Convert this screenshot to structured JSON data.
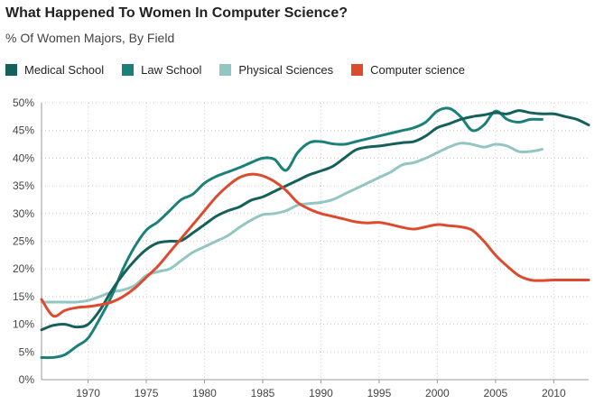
{
  "chart_data": {
    "type": "line",
    "title": "What Happened To Women In Computer Science?",
    "subtitle": "% Of Women Majors, By Field",
    "xlabel": "",
    "ylabel": "",
    "xlim": [
      1966,
      2013
    ],
    "ylim": [
      0,
      50
    ],
    "xticks": [
      1970,
      1975,
      1980,
      1985,
      1990,
      1995,
      2000,
      2005,
      2010
    ],
    "yticks": [
      0,
      5,
      10,
      15,
      20,
      25,
      30,
      35,
      40,
      45,
      50
    ],
    "ytick_suffix": "%",
    "grid": true,
    "legend_position": "top-left",
    "series": [
      {
        "name": "Medical School",
        "color": "#15605a",
        "points": [
          [
            1966,
            9.0
          ],
          [
            1967,
            9.8
          ],
          [
            1968,
            10.0
          ],
          [
            1969,
            9.5
          ],
          [
            1970,
            10.0
          ],
          [
            1971,
            12.5
          ],
          [
            1972,
            16.0
          ],
          [
            1973,
            19.0
          ],
          [
            1974,
            21.5
          ],
          [
            1975,
            23.5
          ],
          [
            1976,
            24.7
          ],
          [
            1977,
            25.0
          ],
          [
            1978,
            25.1
          ],
          [
            1979,
            26.5
          ],
          [
            1980,
            28.0
          ],
          [
            1981,
            29.5
          ],
          [
            1982,
            30.5
          ],
          [
            1983,
            31.2
          ],
          [
            1984,
            32.4
          ],
          [
            1985,
            33.0
          ],
          [
            1986,
            34.0
          ],
          [
            1987,
            35.0
          ],
          [
            1988,
            36.0
          ],
          [
            1989,
            37.0
          ],
          [
            1990,
            37.7
          ],
          [
            1991,
            38.5
          ],
          [
            1992,
            40.0
          ],
          [
            1993,
            41.5
          ],
          [
            1994,
            42.0
          ],
          [
            1995,
            42.2
          ],
          [
            1996,
            42.5
          ],
          [
            1997,
            42.8
          ],
          [
            1998,
            43.0
          ],
          [
            1999,
            44.0
          ],
          [
            2000,
            45.5
          ],
          [
            2001,
            46.2
          ],
          [
            2002,
            47.0
          ],
          [
            2003,
            47.5
          ],
          [
            2004,
            47.8
          ],
          [
            2005,
            48.2
          ],
          [
            2006,
            48.0
          ],
          [
            2007,
            48.6
          ],
          [
            2008,
            48.2
          ],
          [
            2009,
            48.0
          ],
          [
            2010,
            48.0
          ],
          [
            2011,
            47.5
          ],
          [
            2012,
            47.0
          ],
          [
            2013,
            46.0
          ]
        ]
      },
      {
        "name": "Law School",
        "color": "#1b8079",
        "points": [
          [
            1966,
            4.0
          ],
          [
            1967,
            4.0
          ],
          [
            1968,
            4.5
          ],
          [
            1969,
            6.0
          ],
          [
            1970,
            7.5
          ],
          [
            1971,
            11.0
          ],
          [
            1972,
            15.0
          ],
          [
            1973,
            20.0
          ],
          [
            1974,
            24.0
          ],
          [
            1975,
            27.0
          ],
          [
            1976,
            28.5
          ],
          [
            1977,
            30.5
          ],
          [
            1978,
            32.5
          ],
          [
            1979,
            33.5
          ],
          [
            1980,
            35.5
          ],
          [
            1981,
            36.7
          ],
          [
            1982,
            37.5
          ],
          [
            1983,
            38.3
          ],
          [
            1984,
            39.2
          ],
          [
            1985,
            40.0
          ],
          [
            1986,
            39.8
          ],
          [
            1987,
            37.8
          ],
          [
            1988,
            41.0
          ],
          [
            1989,
            42.8
          ],
          [
            1990,
            43.0
          ],
          [
            1991,
            42.6
          ],
          [
            1992,
            42.5
          ],
          [
            1993,
            43.0
          ],
          [
            1994,
            43.5
          ],
          [
            1995,
            44.0
          ],
          [
            1996,
            44.5
          ],
          [
            1997,
            45.0
          ],
          [
            1998,
            45.5
          ],
          [
            1999,
            46.5
          ],
          [
            2000,
            48.5
          ],
          [
            2001,
            49.0
          ],
          [
            2002,
            47.5
          ],
          [
            2003,
            45.0
          ],
          [
            2004,
            46.0
          ],
          [
            2005,
            48.5
          ],
          [
            2006,
            47.0
          ],
          [
            2007,
            46.5
          ],
          [
            2008,
            47.0
          ],
          [
            2009,
            47.0
          ]
        ]
      },
      {
        "name": "Physical Sciences",
        "color": "#93c6c3",
        "points": [
          [
            1966,
            14.0
          ],
          [
            1967,
            14.0
          ],
          [
            1968,
            14.0
          ],
          [
            1969,
            14.0
          ],
          [
            1970,
            14.3
          ],
          [
            1971,
            15.0
          ],
          [
            1972,
            15.8
          ],
          [
            1973,
            16.2
          ],
          [
            1974,
            17.0
          ],
          [
            1975,
            18.8
          ],
          [
            1976,
            19.5
          ],
          [
            1977,
            20.0
          ],
          [
            1978,
            21.5
          ],
          [
            1979,
            23.0
          ],
          [
            1980,
            24.0
          ],
          [
            1981,
            25.0
          ],
          [
            1982,
            26.0
          ],
          [
            1983,
            27.5
          ],
          [
            1984,
            28.8
          ],
          [
            1985,
            29.8
          ],
          [
            1986,
            30.0
          ],
          [
            1987,
            30.5
          ],
          [
            1988,
            31.5
          ],
          [
            1989,
            31.8
          ],
          [
            1990,
            32.0
          ],
          [
            1991,
            32.5
          ],
          [
            1992,
            33.5
          ],
          [
            1993,
            34.5
          ],
          [
            1994,
            35.5
          ],
          [
            1995,
            36.5
          ],
          [
            1996,
            37.5
          ],
          [
            1997,
            38.8
          ],
          [
            1998,
            39.2
          ],
          [
            1999,
            40.0
          ],
          [
            2000,
            41.0
          ],
          [
            2001,
            42.0
          ],
          [
            2002,
            42.7
          ],
          [
            2003,
            42.5
          ],
          [
            2004,
            42.0
          ],
          [
            2005,
            42.5
          ],
          [
            2006,
            42.2
          ],
          [
            2007,
            41.2
          ],
          [
            2008,
            41.2
          ],
          [
            2009,
            41.6
          ]
        ]
      },
      {
        "name": "Computer science",
        "color": "#dd4b2f",
        "points": [
          [
            1966,
            14.5
          ],
          [
            1967,
            11.5
          ],
          [
            1968,
            12.5
          ],
          [
            1969,
            13.0
          ],
          [
            1970,
            13.2
          ],
          [
            1971,
            13.5
          ],
          [
            1972,
            14.0
          ],
          [
            1973,
            15.0
          ],
          [
            1974,
            16.5
          ],
          [
            1975,
            18.5
          ],
          [
            1976,
            20.5
          ],
          [
            1977,
            23.0
          ],
          [
            1978,
            25.5
          ],
          [
            1979,
            28.0
          ],
          [
            1980,
            30.5
          ],
          [
            1981,
            33.0
          ],
          [
            1982,
            35.0
          ],
          [
            1983,
            36.5
          ],
          [
            1984,
            37.1
          ],
          [
            1985,
            36.8
          ],
          [
            1986,
            35.8
          ],
          [
            1987,
            34.2
          ],
          [
            1988,
            32.0
          ],
          [
            1989,
            30.8
          ],
          [
            1990,
            30.0
          ],
          [
            1991,
            29.5
          ],
          [
            1992,
            29.0
          ],
          [
            1993,
            28.5
          ],
          [
            1994,
            28.3
          ],
          [
            1995,
            28.4
          ],
          [
            1996,
            28.0
          ],
          [
            1997,
            27.5
          ],
          [
            1998,
            27.2
          ],
          [
            1999,
            27.6
          ],
          [
            2000,
            28.0
          ],
          [
            2001,
            27.8
          ],
          [
            2002,
            27.6
          ],
          [
            2003,
            27.0
          ],
          [
            2004,
            25.0
          ],
          [
            2005,
            22.5
          ],
          [
            2006,
            20.5
          ],
          [
            2007,
            18.8
          ],
          [
            2008,
            18.0
          ],
          [
            2009,
            17.9
          ],
          [
            2010,
            18.0
          ],
          [
            2011,
            18.0
          ],
          [
            2012,
            18.0
          ],
          [
            2013,
            18.0
          ]
        ]
      }
    ]
  }
}
